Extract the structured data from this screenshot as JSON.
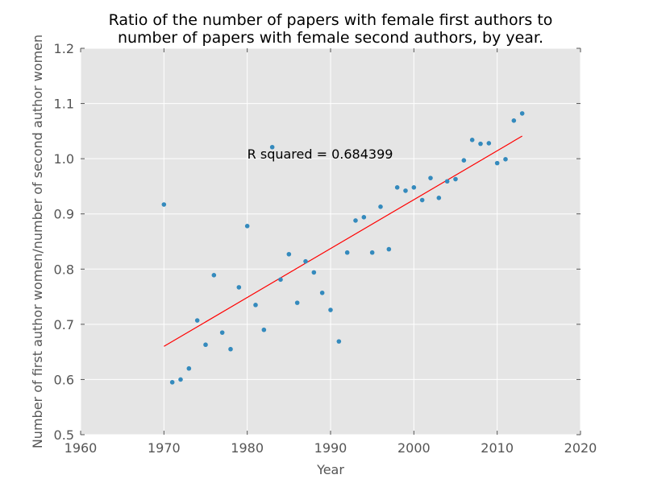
{
  "chart_data": {
    "type": "scatter",
    "title_lines": [
      "Ratio of the number of papers with female first authors to",
      "number of papers with female second authors, by year."
    ],
    "xlabel": "Year",
    "ylabel": "Number of first author women/number of second author women",
    "xlim": [
      1960,
      2020
    ],
    "ylim": [
      0.5,
      1.2
    ],
    "x_ticks": [
      "1960",
      "1970",
      "1980",
      "1990",
      "2000",
      "2010",
      "2020"
    ],
    "y_ticks": [
      "0.5",
      "0.6",
      "0.7",
      "0.8",
      "0.9",
      "1.0",
      "1.1",
      "1.2"
    ],
    "grid": true,
    "background": "#e5e5e5",
    "point_color": "#348abd",
    "fit_color": "#ff0000",
    "annotation": {
      "text": "R squared = 0.684399",
      "x": 1980,
      "y": 1.0
    },
    "series": [
      {
        "x": [
          1970,
          1971,
          1972,
          1973,
          1974,
          1975,
          1976,
          1977,
          1978,
          1979,
          1980,
          1981,
          1982,
          1983,
          1984,
          1985,
          1986,
          1987,
          1988,
          1989,
          1990,
          1991,
          1992,
          1993,
          1994,
          1995,
          1996,
          1997,
          1998,
          1999,
          2000,
          2001,
          2002,
          2003,
          2004,
          2005,
          2006,
          2007,
          2008,
          2009,
          2010,
          2011,
          2012,
          2013
        ],
        "y": [
          0.917,
          0.595,
          0.6,
          0.62,
          0.707,
          0.663,
          0.789,
          0.685,
          0.655,
          0.767,
          0.878,
          0.735,
          0.69,
          1.021,
          0.781,
          0.827,
          0.739,
          0.814,
          0.794,
          0.757,
          0.726,
          0.669,
          0.83,
          0.888,
          0.894,
          0.83,
          0.913,
          0.836,
          0.948,
          0.942,
          0.948,
          0.925,
          0.965,
          0.929,
          0.959,
          0.963,
          0.997,
          1.034,
          1.027,
          1.028,
          0.992,
          0.999,
          1.069,
          1.082
        ]
      }
    ],
    "fit_line": {
      "x": [
        1970,
        2013
      ],
      "y": [
        0.66,
        1.041
      ]
    }
  }
}
